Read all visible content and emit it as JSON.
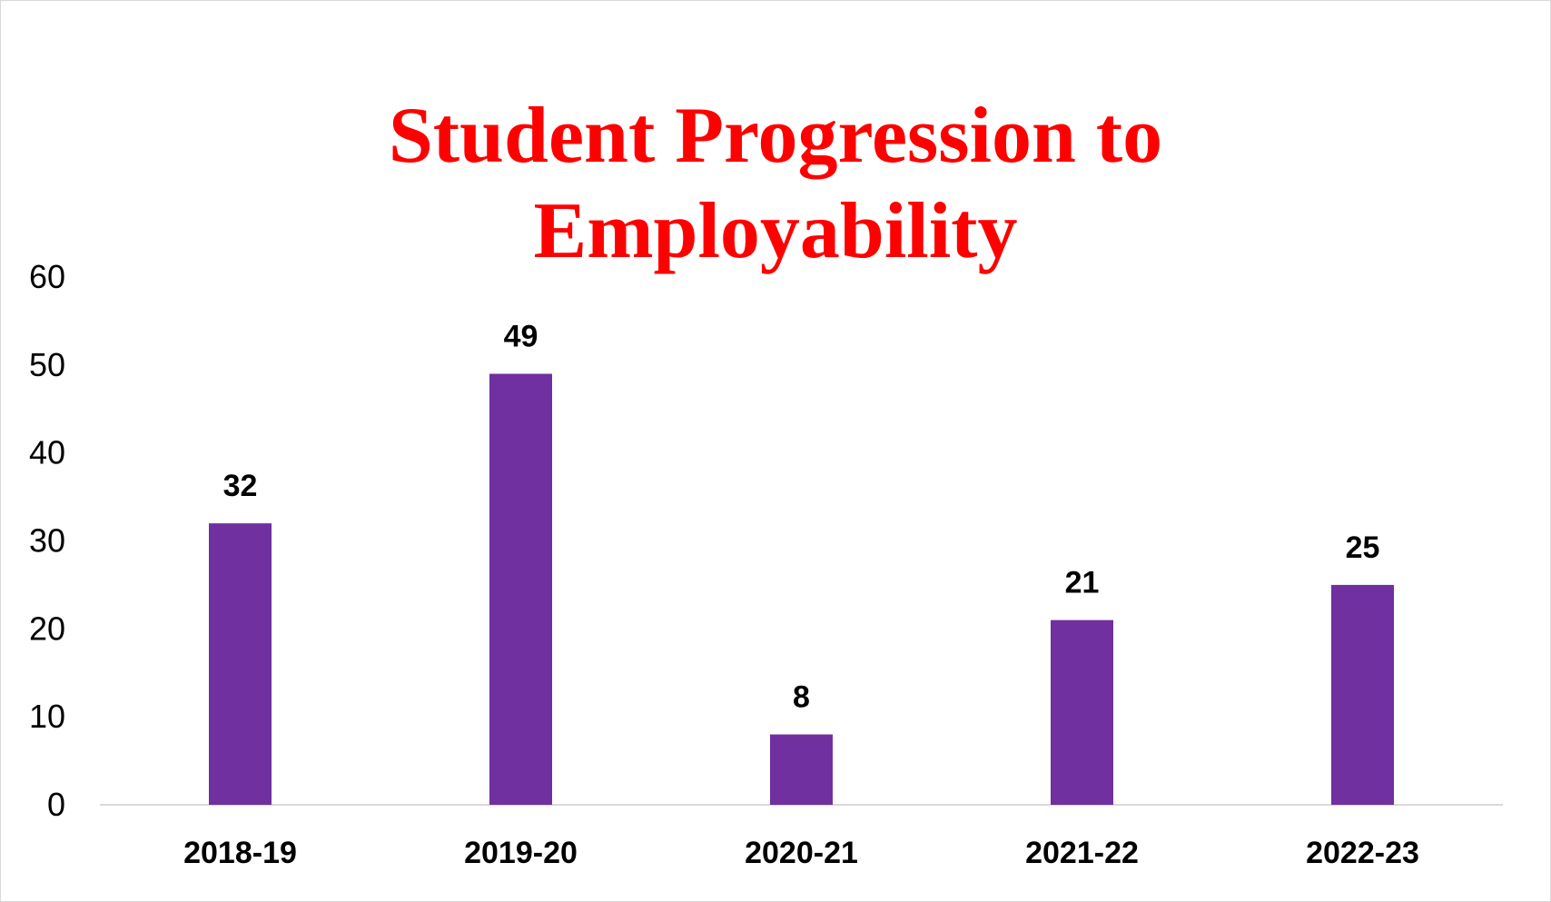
{
  "chart_data": {
    "type": "bar",
    "title_lines": [
      "Student Progression to",
      "Employability"
    ],
    "categories": [
      "2018-19",
      "2019-20",
      "2020-21",
      "2021-22",
      "2022-23"
    ],
    "values": [
      32,
      49,
      8,
      21,
      25
    ],
    "ylim": [
      0,
      60
    ],
    "yticks": [
      "0",
      "10",
      "20",
      "30",
      "40",
      "50",
      "60"
    ],
    "grid": false,
    "legend": "none",
    "data_labels": true,
    "colors": {
      "bar": "#7030A0",
      "title": "#FF0000",
      "axis": "#d9d9d9"
    }
  }
}
